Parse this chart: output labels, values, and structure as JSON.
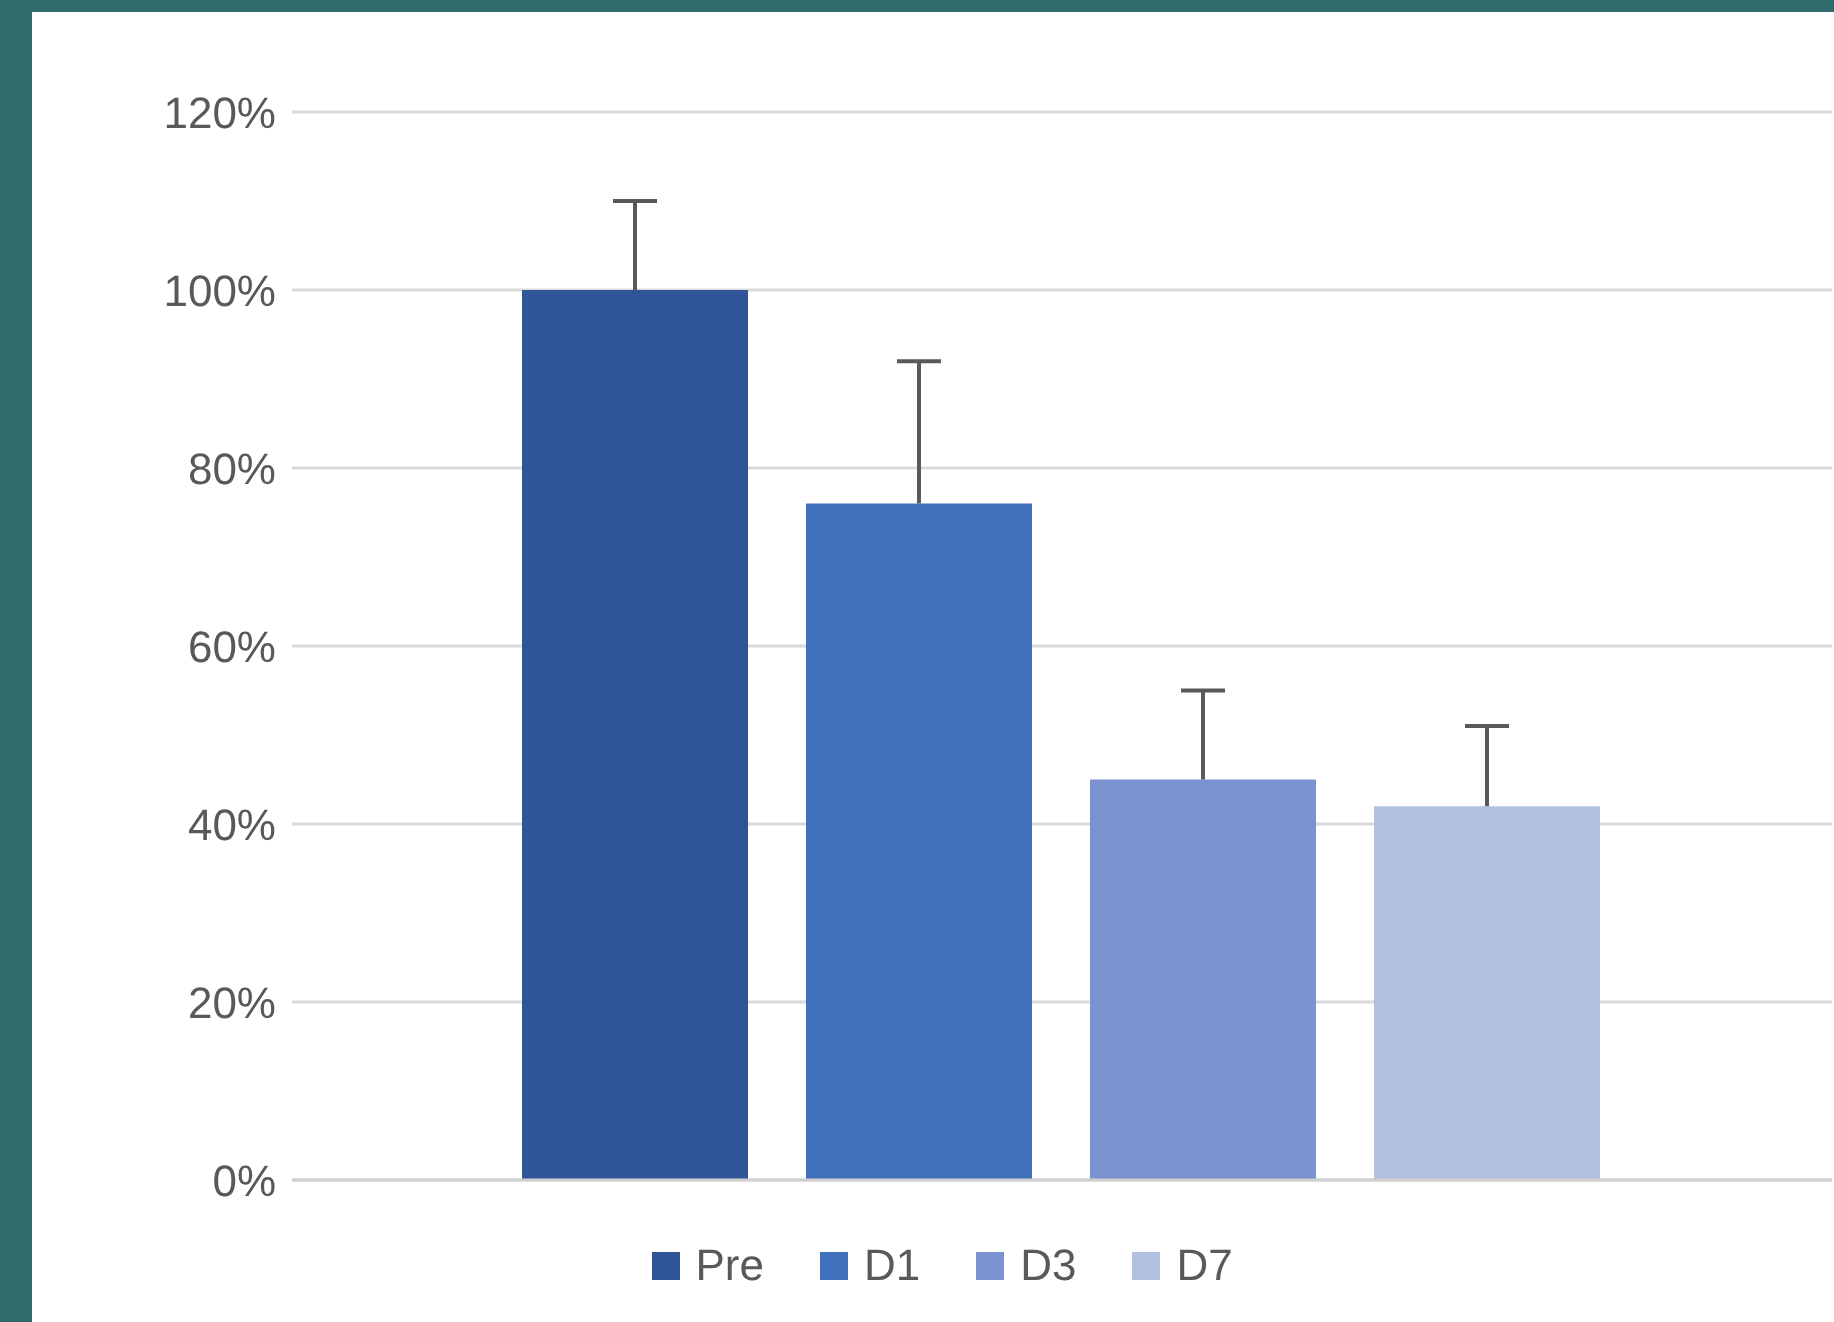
{
  "chart_data": {
    "type": "bar",
    "categories": [
      null
    ],
    "series": [
      {
        "name": "Pre",
        "color": "#2f5597",
        "values": [
          100
        ],
        "errors": [
          [
            100,
            110
          ]
        ]
      },
      {
        "name": "D1",
        "color": "#4170bd",
        "values": [
          76
        ],
        "errors": [
          [
            76,
            92
          ]
        ]
      },
      {
        "name": "D3",
        "color": "#7a93d0",
        "values": [
          45
        ],
        "errors": [
          [
            45,
            55
          ]
        ]
      },
      {
        "name": "D7",
        "color": "#b4c0e0",
        "values": [
          42
        ],
        "errors": [
          [
            42,
            51
          ]
        ]
      }
    ],
    "ylim": [
      0,
      120
    ],
    "yticks": [
      {
        "value": 0,
        "label": "0%"
      },
      {
        "value": 20,
        "label": "20%"
      },
      {
        "value": 40,
        "label": "40%"
      },
      {
        "value": 60,
        "label": "60%"
      },
      {
        "value": 80,
        "label": "80%"
      },
      {
        "value": 100,
        "label": "100%"
      },
      {
        "value": 120,
        "label": "120%"
      }
    ],
    "grid": "y",
    "legend": "bottom"
  }
}
